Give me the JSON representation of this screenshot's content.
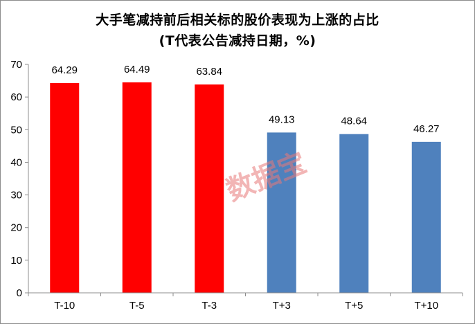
{
  "chart_data": {
    "type": "bar",
    "title": "大手笔减持前后相关标的股价表现为上涨的占比",
    "subtitle": "(T代表公告减持日期，%)",
    "categories": [
      "T-10",
      "T-5",
      "T-3",
      "T+3",
      "T+5",
      "T+10"
    ],
    "values": [
      64.29,
      64.49,
      63.84,
      49.13,
      48.64,
      46.27
    ],
    "value_labels": [
      "64.29",
      "64.49",
      "63.84",
      "49.13",
      "48.64",
      "46.27"
    ],
    "bar_colors": [
      "#ff0000",
      "#ff0000",
      "#ff0000",
      "#4f81bd",
      "#4f81bd",
      "#4f81bd"
    ],
    "ylim": [
      0,
      70
    ],
    "yticks": [
      0,
      10,
      20,
      30,
      40,
      50,
      60,
      70
    ],
    "xlabel": "",
    "ylabel": "",
    "grid": false,
    "legend": "none"
  },
  "watermark": "数据宝"
}
